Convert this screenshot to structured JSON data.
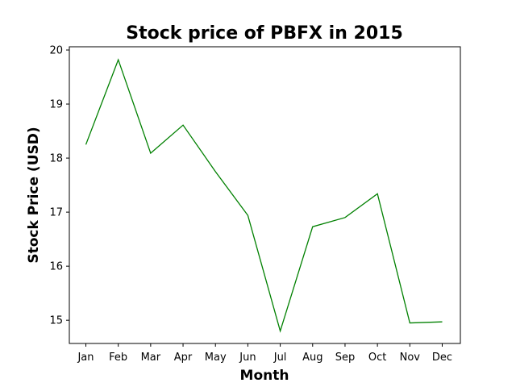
{
  "chart_data": {
    "type": "line",
    "title": "Stock price of PBFX in 2015",
    "xlabel": "Month",
    "ylabel": "Stock Price (USD)",
    "categories": [
      "Jan",
      "Feb",
      "Mar",
      "Apr",
      "May",
      "Jun",
      "Jul",
      "Aug",
      "Sep",
      "Oct",
      "Nov",
      "Dec"
    ],
    "series": [
      {
        "values": [
          18.25,
          19.82,
          18.09,
          18.61,
          17.75,
          16.94,
          14.8,
          16.73,
          16.9,
          17.34,
          14.95,
          14.97
        ],
        "color": "#008000"
      }
    ],
    "yticks": [
      15,
      16,
      17,
      18,
      19,
      20
    ],
    "ylim": [
      14.57,
      20.06
    ],
    "grid": false,
    "legend": "none"
  }
}
